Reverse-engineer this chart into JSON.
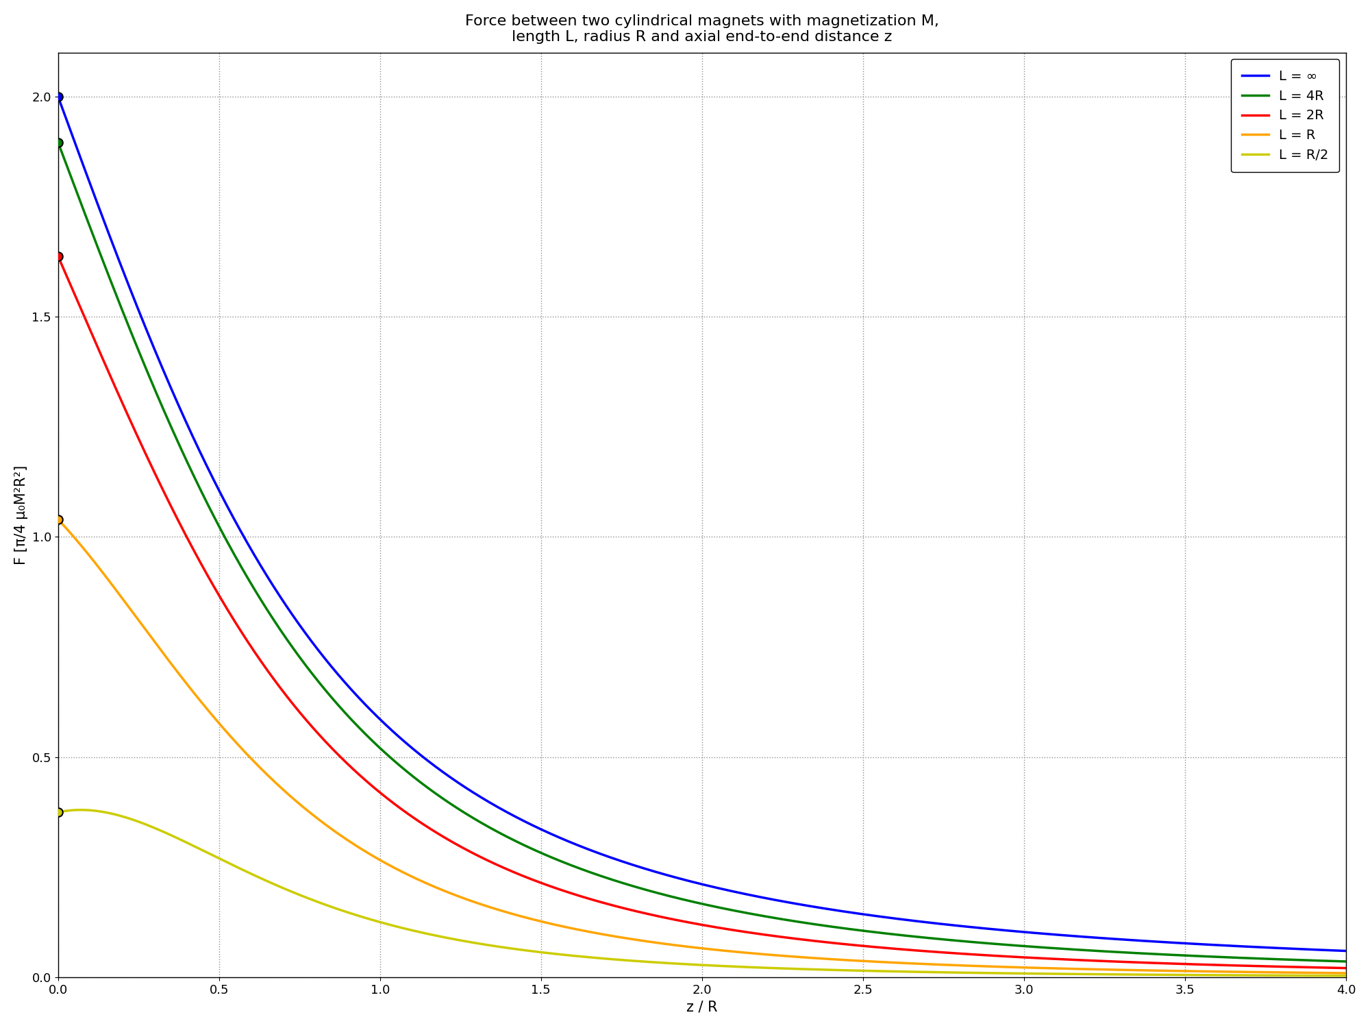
{
  "title": "Force between two cylindrical magnets with magnetization M,\nlength L, radius R and axial end-to-end distance z",
  "xlabel": "z / R",
  "ylabel": "F [π/4 μ₀M²R²]",
  "xlim": [
    0,
    4.0
  ],
  "ylim": [
    0,
    2.1
  ],
  "yticks": [
    0.0,
    0.5,
    1.0,
    1.5,
    2.0
  ],
  "xticks": [
    0.0,
    0.5,
    1.0,
    1.5,
    2.0,
    2.5,
    3.0,
    3.5,
    4.0
  ],
  "lines": [
    {
      "label": "L = ∞",
      "color": "#0000ff",
      "L_over_R": 1000
    },
    {
      "label": "L = 4R",
      "color": "#008000",
      "L_over_R": 4
    },
    {
      "label": "L = 2R",
      "color": "#ff0000",
      "L_over_R": 2
    },
    {
      "label": "L = R",
      "color": "#ffa500",
      "L_over_R": 1
    },
    {
      "label": "L = R/2",
      "color": "#cccc00",
      "L_over_R": 0.5
    }
  ],
  "background_color": "#ffffff",
  "title_fontsize": 16,
  "label_fontsize": 15,
  "tick_fontsize": 13,
  "legend_fontsize": 14,
  "linewidth": 2.5,
  "marker_size": 9
}
